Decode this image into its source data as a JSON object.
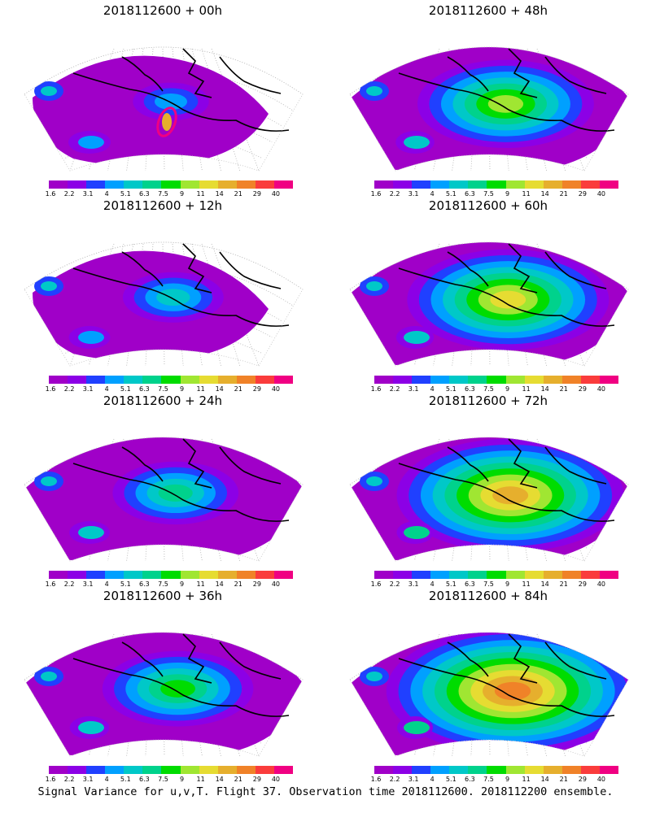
{
  "palette": {
    "levels": [
      "1.6",
      "2.2",
      "3.1",
      "4",
      "5.1",
      "6.3",
      "7.5",
      "9",
      "11",
      "14",
      "21",
      "29",
      "40"
    ],
    "colors": [
      "#a000c8",
      "#8c00e6",
      "#2040ff",
      "#00a0ff",
      "#00c8c8",
      "#00d28c",
      "#00dc00",
      "#a0e632",
      "#e6dc32",
      "#e6af2d",
      "#f08228",
      "#fa3c3c",
      "#f00082"
    ]
  },
  "panels": [
    {
      "title": "2018112600 + 00h",
      "lead_hours": 0
    },
    {
      "title": "2018112600 + 12h",
      "lead_hours": 12
    },
    {
      "title": "2018112600 + 24h",
      "lead_hours": 24
    },
    {
      "title": "2018112600 + 36h",
      "lead_hours": 36
    },
    {
      "title": "2018112600 + 48h",
      "lead_hours": 48
    },
    {
      "title": "2018112600 + 60h",
      "lead_hours": 60
    },
    {
      "title": "2018112600 + 72h",
      "lead_hours": 72
    },
    {
      "title": "2018112600 + 84h",
      "lead_hours": 84
    }
  ],
  "footer": "Signal Variance for u,v,T. Flight 37. Observation time 2018112600. 2018112200 ensemble."
}
